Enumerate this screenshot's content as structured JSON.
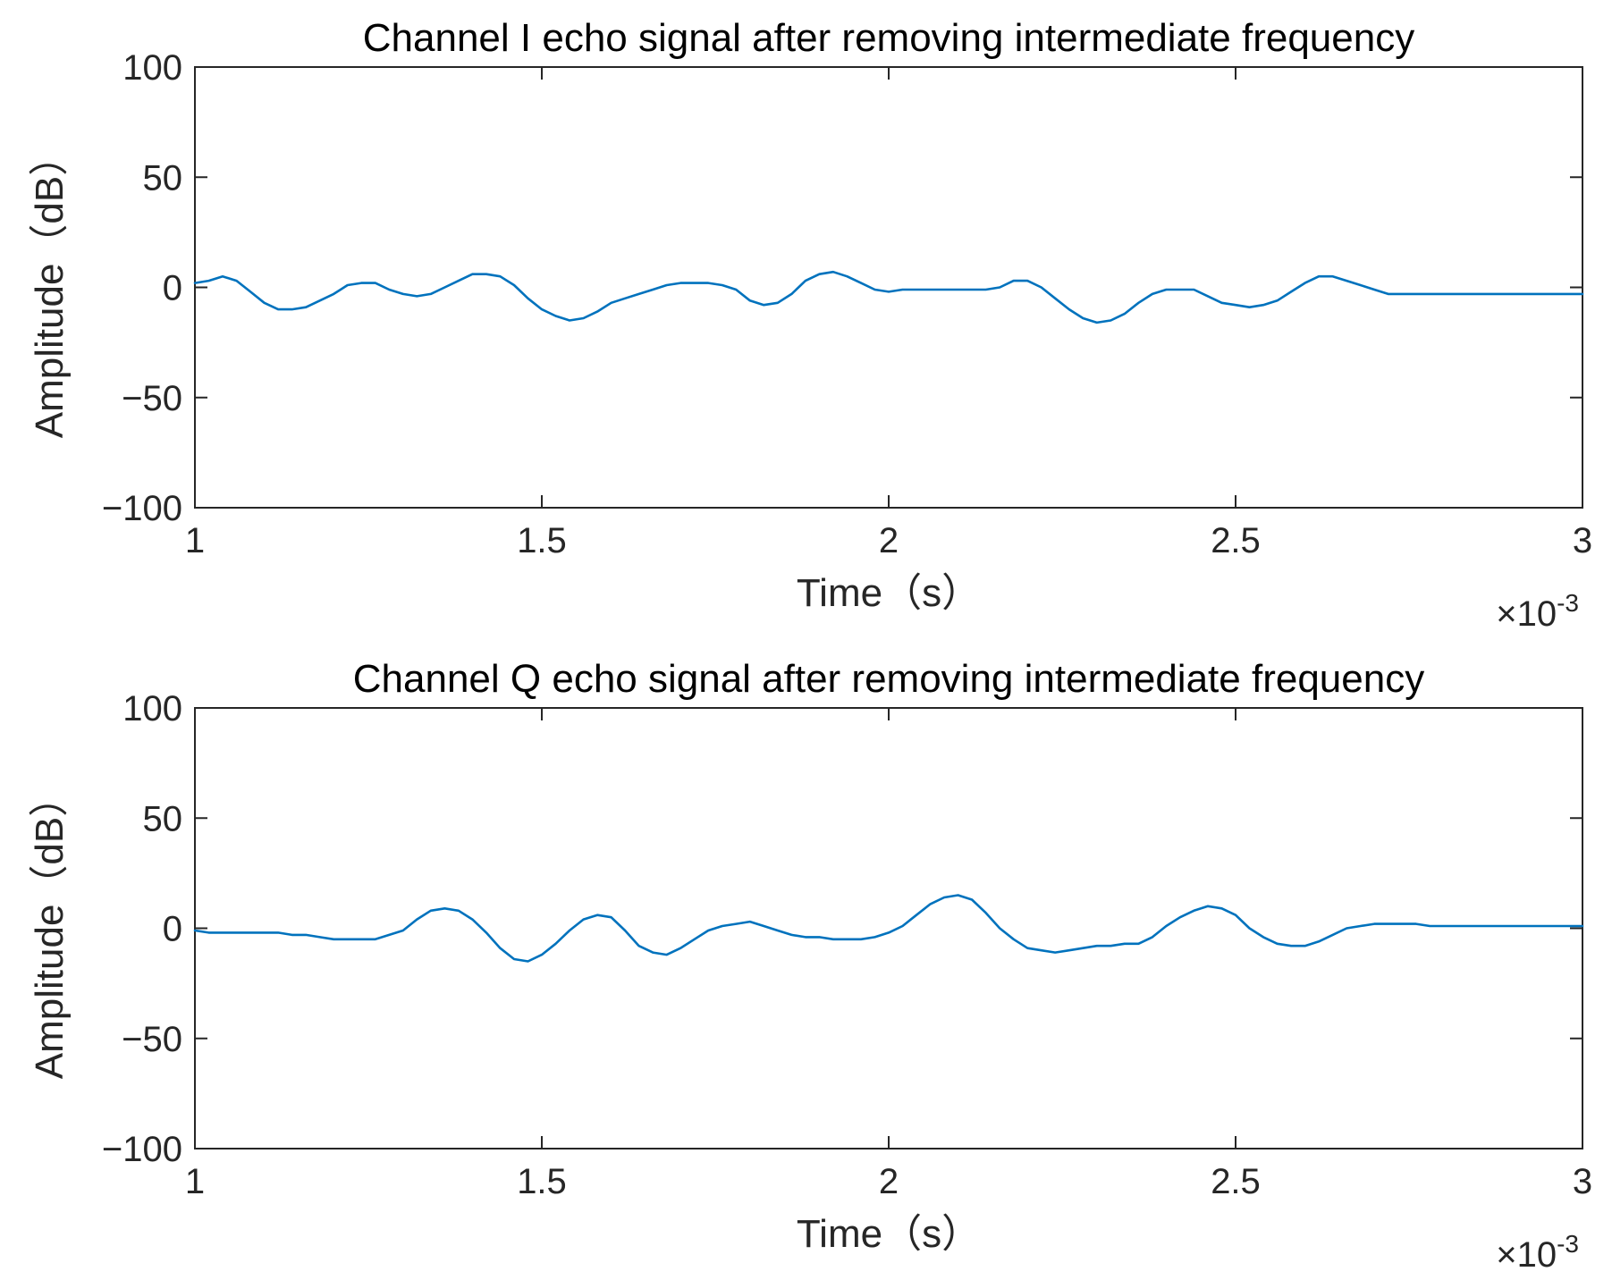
{
  "chart_data": [
    {
      "type": "line",
      "title": "Channel I echo signal after removing intermediate frequency",
      "xlabel": "Time（s）",
      "ylabel": "Amplitude（dB）",
      "xlim": [
        0.001,
        0.003
      ],
      "ylim": [
        -100,
        100
      ],
      "x_ticks": [
        0.001,
        0.0015,
        0.002,
        0.0025,
        0.003
      ],
      "x_tick_labels": [
        "1",
        "1.5",
        "2",
        "2.5",
        "3"
      ],
      "y_ticks": [
        100,
        50,
        0,
        -50,
        -100
      ],
      "y_tick_labels": [
        "100",
        "50",
        "0",
        "−50",
        "−100"
      ],
      "x_exponent_base": "×10",
      "x_exponent_power": "-3",
      "grid": false,
      "color": "#0072BD",
      "series": [
        {
          "x": [
            0.001,
            0.00102,
            0.00104,
            0.00106,
            0.00108,
            0.0011,
            0.00112,
            0.00114,
            0.00116,
            0.00118,
            0.0012,
            0.00122,
            0.00124,
            0.00126,
            0.00128,
            0.0013,
            0.00132,
            0.00134,
            0.00136,
            0.00138,
            0.0014,
            0.00142,
            0.00144,
            0.00146,
            0.00148,
            0.0015,
            0.00152,
            0.00154,
            0.00156,
            0.00158,
            0.0016,
            0.00162,
            0.00164,
            0.00166,
            0.00168,
            0.0017,
            0.00172,
            0.00174,
            0.00176,
            0.00178,
            0.0018,
            0.00182,
            0.00184,
            0.00186,
            0.00188,
            0.0019,
            0.00192,
            0.00194,
            0.00196,
            0.00198,
            0.002,
            0.00202,
            0.00204,
            0.00206,
            0.00208,
            0.0021,
            0.00212,
            0.00214,
            0.00216,
            0.00218,
            0.0022,
            0.00222,
            0.00224,
            0.00226,
            0.00228,
            0.0023,
            0.00232,
            0.00234,
            0.00236,
            0.00238,
            0.0024,
            0.00242,
            0.00244,
            0.00246,
            0.00248,
            0.0025,
            0.00252,
            0.00254,
            0.00256,
            0.00258,
            0.0026,
            0.00262,
            0.00264,
            0.00266,
            0.00268,
            0.0027,
            0.00272,
            0.00274,
            0.00276,
            0.00278,
            0.0028,
            0.00282,
            0.00284,
            0.00286,
            0.00288,
            0.0029,
            0.00292,
            0.00294,
            0.00296,
            0.00298,
            0.003
          ],
          "y": [
            2,
            3,
            5,
            3,
            -2,
            -7,
            -10,
            -10,
            -9,
            -6,
            -3,
            1,
            2,
            2,
            -1,
            -3,
            -4,
            -3,
            0,
            3,
            6,
            6,
            5,
            1,
            -5,
            -10,
            -13,
            -15,
            -14,
            -11,
            -7,
            -5,
            -3,
            -1,
            1,
            2,
            2,
            2,
            1,
            -1,
            -6,
            -8,
            -7,
            -3,
            3,
            6,
            7,
            5,
            2,
            -1,
            -2,
            -1,
            -1,
            -1,
            -1,
            -1,
            -1,
            -1,
            0,
            3,
            3,
            0,
            -5,
            -10,
            -14,
            -16,
            -15,
            -12,
            -7,
            -3,
            -1,
            -1,
            -1,
            -4,
            -7,
            -8,
            -9,
            -8,
            -6,
            -2,
            2,
            5,
            5,
            3,
            1,
            -1,
            -3,
            -3,
            -3,
            -3,
            -3,
            -3,
            -3,
            -3,
            -3,
            -3,
            -3,
            -3,
            -3,
            -3,
            -3
          ]
        }
      ]
    },
    {
      "type": "line",
      "title": "Channel Q echo signal after removing intermediate frequency",
      "xlabel": "Time（s）",
      "ylabel": "Amplitude（dB）",
      "xlim": [
        0.001,
        0.003
      ],
      "ylim": [
        -100,
        100
      ],
      "x_ticks": [
        0.001,
        0.0015,
        0.002,
        0.0025,
        0.003
      ],
      "x_tick_labels": [
        "1",
        "1.5",
        "2",
        "2.5",
        "3"
      ],
      "y_ticks": [
        100,
        50,
        0,
        -50,
        -100
      ],
      "y_tick_labels": [
        "100",
        "50",
        "0",
        "−50",
        "−100"
      ],
      "x_exponent_base": "×10",
      "x_exponent_power": "-3",
      "grid": false,
      "color": "#0072BD",
      "series": [
        {
          "x": [
            0.001,
            0.00102,
            0.00104,
            0.00106,
            0.00108,
            0.0011,
            0.00112,
            0.00114,
            0.00116,
            0.00118,
            0.0012,
            0.00122,
            0.00124,
            0.00126,
            0.00128,
            0.0013,
            0.00132,
            0.00134,
            0.00136,
            0.00138,
            0.0014,
            0.00142,
            0.00144,
            0.00146,
            0.00148,
            0.0015,
            0.00152,
            0.00154,
            0.00156,
            0.00158,
            0.0016,
            0.00162,
            0.00164,
            0.00166,
            0.00168,
            0.0017,
            0.00172,
            0.00174,
            0.00176,
            0.00178,
            0.0018,
            0.00182,
            0.00184,
            0.00186,
            0.00188,
            0.0019,
            0.00192,
            0.00194,
            0.00196,
            0.00198,
            0.002,
            0.00202,
            0.00204,
            0.00206,
            0.00208,
            0.0021,
            0.00212,
            0.00214,
            0.00216,
            0.00218,
            0.0022,
            0.00222,
            0.00224,
            0.00226,
            0.00228,
            0.0023,
            0.00232,
            0.00234,
            0.00236,
            0.00238,
            0.0024,
            0.00242,
            0.00244,
            0.00246,
            0.00248,
            0.0025,
            0.00252,
            0.00254,
            0.00256,
            0.00258,
            0.0026,
            0.00262,
            0.00264,
            0.00266,
            0.00268,
            0.0027,
            0.00272,
            0.00274,
            0.00276,
            0.00278,
            0.0028,
            0.00282,
            0.00284,
            0.00286,
            0.00288,
            0.0029,
            0.00292,
            0.00294,
            0.00296,
            0.00298,
            0.003
          ],
          "y": [
            -1,
            -2,
            -2,
            -2,
            -2,
            -2,
            -2,
            -3,
            -3,
            -4,
            -5,
            -5,
            -5,
            -5,
            -3,
            -1,
            4,
            8,
            9,
            8,
            4,
            -2,
            -9,
            -14,
            -15,
            -12,
            -7,
            -1,
            4,
            6,
            5,
            -1,
            -8,
            -11,
            -12,
            -9,
            -5,
            -1,
            1,
            2,
            3,
            1,
            -1,
            -3,
            -4,
            -4,
            -5,
            -5,
            -5,
            -4,
            -2,
            1,
            6,
            11,
            14,
            15,
            13,
            7,
            0,
            -5,
            -9,
            -10,
            -11,
            -10,
            -9,
            -8,
            -8,
            -7,
            -7,
            -4,
            1,
            5,
            8,
            10,
            9,
            6,
            0,
            -4,
            -7,
            -8,
            -8,
            -6,
            -3,
            0,
            1,
            2,
            2,
            2,
            2,
            1,
            1,
            1,
            1,
            1,
            1,
            1,
            1,
            1,
            1,
            1,
            1
          ]
        }
      ]
    }
  ]
}
